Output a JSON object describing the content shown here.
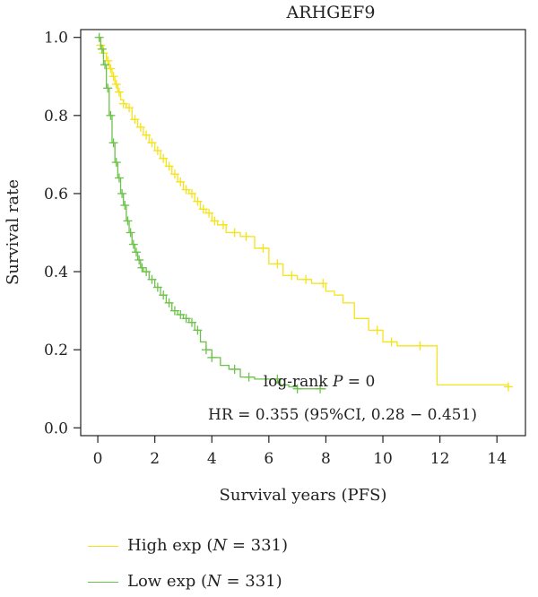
{
  "chart_data": {
    "type": "line",
    "subtype": "kaplan-meier",
    "title": "ARHGEF9",
    "xlabel": "Survival years (PFS)",
    "ylabel": "Survival rate",
    "xlim": [
      -0.6,
      15.0
    ],
    "ylim": [
      -0.02,
      1.02
    ],
    "xticks": [
      0,
      2,
      4,
      6,
      8,
      10,
      12,
      14
    ],
    "yticks": [
      0.0,
      0.2,
      0.4,
      0.6,
      0.8,
      1.0
    ],
    "ytick_labels": [
      "0.0",
      "0.2",
      "0.4",
      "0.6",
      "0.8",
      "1.0"
    ],
    "grid": false,
    "annotations": {
      "logrank_prefix": "log-rank ",
      "logrank_p": "P",
      "logrank_suffix": " = 0",
      "hr": "HR = 0.355 (95%CI, 0.28 − 0.451)"
    },
    "series": [
      {
        "label_prefix": "High exp (",
        "label_n": "N",
        "label_suffix": " = 331)",
        "color": "#f5e31a",
        "x": [
          0,
          0.1,
          0.2,
          0.3,
          0.4,
          0.5,
          0.6,
          0.7,
          0.8,
          0.9,
          1.0,
          1.2,
          1.4,
          1.6,
          1.8,
          2.0,
          2.2,
          2.4,
          2.6,
          2.8,
          3.0,
          3.2,
          3.4,
          3.6,
          3.8,
          4.0,
          4.2,
          4.5,
          5.0,
          5.5,
          6.0,
          6.5,
          7.0,
          7.5,
          8.0,
          8.3,
          8.6,
          9.0,
          9.5,
          10.0,
          10.5,
          11.0,
          11.5,
          11.9,
          14.4
        ],
        "y": [
          1.0,
          0.98,
          0.96,
          0.94,
          0.92,
          0.9,
          0.88,
          0.86,
          0.84,
          0.83,
          0.82,
          0.79,
          0.77,
          0.75,
          0.73,
          0.71,
          0.69,
          0.67,
          0.65,
          0.63,
          0.61,
          0.6,
          0.58,
          0.56,
          0.55,
          0.53,
          0.52,
          0.5,
          0.49,
          0.46,
          0.42,
          0.39,
          0.38,
          0.37,
          0.35,
          0.34,
          0.32,
          0.28,
          0.25,
          0.22,
          0.21,
          0.21,
          0.21,
          0.11,
          0.105
        ],
        "censor_x": [
          0.1,
          0.2,
          0.35,
          0.45,
          0.55,
          0.65,
          0.75,
          0.9,
          1.1,
          1.3,
          1.5,
          1.7,
          1.9,
          2.1,
          2.3,
          2.5,
          2.7,
          2.9,
          3.1,
          3.3,
          3.5,
          3.7,
          3.9,
          4.1,
          4.4,
          4.8,
          5.2,
          5.8,
          6.3,
          6.8,
          7.3,
          7.9,
          9.8,
          10.3,
          11.3,
          14.4
        ]
      },
      {
        "label_prefix": "Low exp (",
        "label_n": "N",
        "label_suffix": " = 331)",
        "color": "#6cc24a",
        "x": [
          0,
          0.1,
          0.2,
          0.3,
          0.4,
          0.5,
          0.6,
          0.7,
          0.8,
          0.9,
          1.0,
          1.1,
          1.2,
          1.3,
          1.4,
          1.5,
          1.6,
          1.8,
          2.0,
          2.2,
          2.4,
          2.6,
          2.8,
          3.0,
          3.2,
          3.4,
          3.6,
          3.8,
          4.0,
          4.3,
          4.6,
          5.0,
          5.5,
          6.0,
          6.4,
          6.7,
          7.0,
          8.0
        ],
        "y": [
          1.0,
          0.97,
          0.93,
          0.87,
          0.8,
          0.73,
          0.68,
          0.64,
          0.6,
          0.57,
          0.53,
          0.5,
          0.47,
          0.45,
          0.43,
          0.41,
          0.4,
          0.38,
          0.36,
          0.34,
          0.32,
          0.3,
          0.29,
          0.28,
          0.27,
          0.25,
          0.22,
          0.2,
          0.18,
          0.16,
          0.15,
          0.13,
          0.125,
          0.125,
          0.11,
          0.105,
          0.1,
          0.1
        ],
        "censor_x": [
          0.05,
          0.15,
          0.25,
          0.35,
          0.45,
          0.55,
          0.65,
          0.75,
          0.85,
          0.95,
          1.05,
          1.15,
          1.25,
          1.35,
          1.45,
          1.55,
          1.7,
          1.9,
          2.1,
          2.3,
          2.5,
          2.7,
          2.9,
          3.1,
          3.3,
          3.5,
          3.8,
          4.0,
          4.8,
          5.3,
          6.3,
          7.0,
          7.8
        ]
      }
    ]
  }
}
